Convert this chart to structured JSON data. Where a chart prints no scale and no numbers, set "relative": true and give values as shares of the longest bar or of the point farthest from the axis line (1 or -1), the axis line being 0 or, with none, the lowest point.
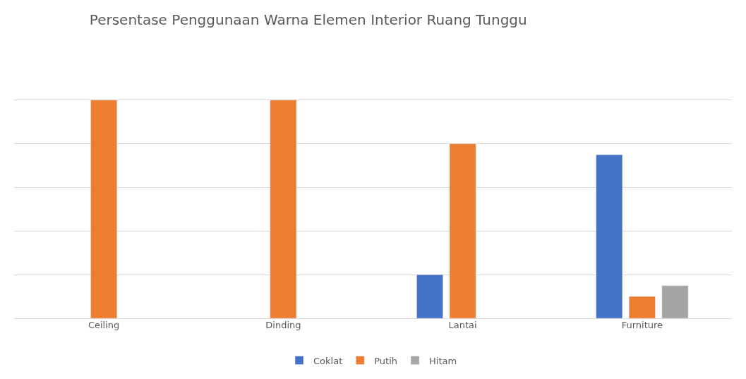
{
  "chart_data": {
    "type": "bar",
    "title": "Persentase Penggunaan Warna Elemen Interior Ruang Tunggu",
    "categories": [
      "Ceiling",
      "Dinding",
      "Lantai",
      "Furniture"
    ],
    "relative": true,
    "grid": "y",
    "legend": "bottom",
    "series": [
      {
        "name": "Coklat",
        "color": "#4472c4",
        "values": [
          null,
          null,
          0.2,
          0.75
        ]
      },
      {
        "name": "Putih",
        "color": "#ed7d31",
        "values": [
          1,
          1,
          0.8,
          0.1
        ]
      },
      {
        "name": "Hitam",
        "color": "#a5a5a5",
        "values": [
          null,
          null,
          null,
          0.15
        ]
      }
    ]
  }
}
